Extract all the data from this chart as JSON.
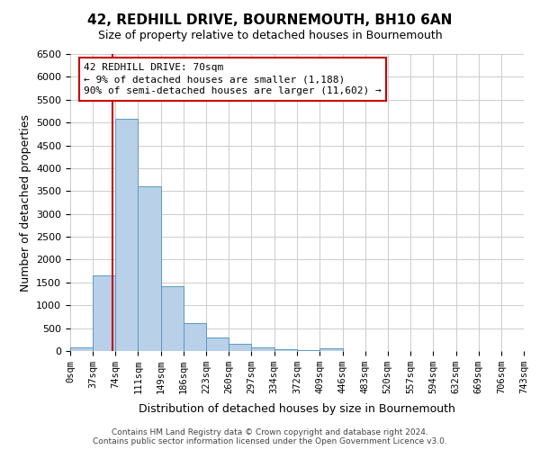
{
  "title": "42, REDHILL DRIVE, BOURNEMOUTH, BH10 6AN",
  "subtitle": "Size of property relative to detached houses in Bournemouth",
  "xlabel": "Distribution of detached houses by size in Bournemouth",
  "ylabel": "Number of detached properties",
  "bin_edges": [
    0,
    37,
    74,
    111,
    149,
    186,
    223,
    260,
    297,
    334,
    372,
    409,
    446,
    483,
    520,
    557,
    594,
    632,
    669,
    706,
    743
  ],
  "bin_labels": [
    "0sqm",
    "37sqm",
    "74sqm",
    "111sqm",
    "149sqm",
    "186sqm",
    "223sqm",
    "260sqm",
    "297sqm",
    "334sqm",
    "372sqm",
    "409sqm",
    "446sqm",
    "483sqm",
    "520sqm",
    "557sqm",
    "594sqm",
    "632sqm",
    "669sqm",
    "706sqm",
    "743sqm"
  ],
  "counts": [
    75,
    1650,
    5080,
    3600,
    1420,
    620,
    305,
    155,
    75,
    30,
    10,
    60,
    0,
    0,
    0,
    0,
    0,
    0,
    0,
    0
  ],
  "bar_color": "#b8d0e8",
  "bar_edge_color": "#5a9abf",
  "property_line_x": 70,
  "property_line_color": "#cc0000",
  "ylim": [
    0,
    6500
  ],
  "yticks": [
    0,
    500,
    1000,
    1500,
    2000,
    2500,
    3000,
    3500,
    4000,
    4500,
    5000,
    5500,
    6000,
    6500
  ],
  "annotation_lines": [
    "42 REDHILL DRIVE: 70sqm",
    "← 9% of detached houses are smaller (1,188)",
    "90% of semi-detached houses are larger (11,602) →"
  ],
  "annotation_box_color": "#ffffff",
  "annotation_box_edge_color": "#cc0000",
  "grid_color": "#cccccc",
  "footer_line1": "Contains HM Land Registry data © Crown copyright and database right 2024.",
  "footer_line2": "Contains public sector information licensed under the Open Government Licence v3.0.",
  "bg_color": "#ffffff",
  "plot_bg_color": "#ffffff"
}
